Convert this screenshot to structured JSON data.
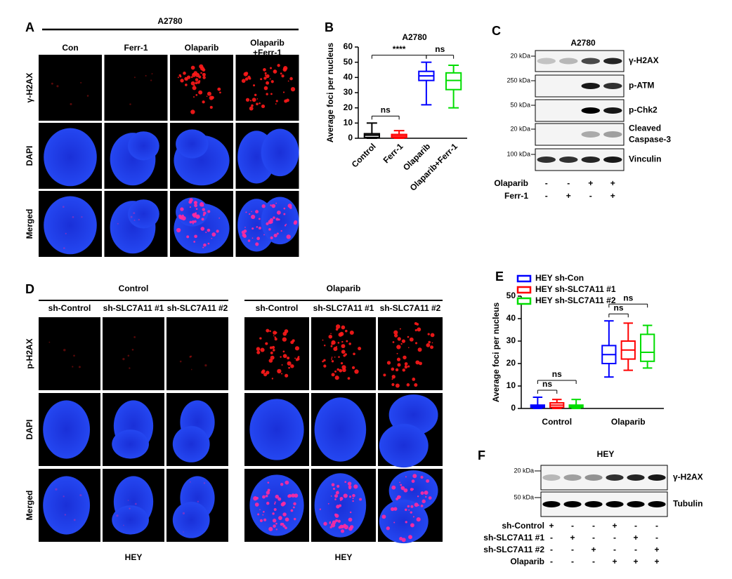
{
  "panel_a": {
    "letter": "A",
    "cell_line": "A2780",
    "columns": [
      "Con",
      "Ferr-1",
      "Olaparib",
      [
        "Olaparib",
        "+Ferr-1"
      ]
    ],
    "rows": [
      "γ-H2AX",
      "DAPI",
      "Merged"
    ]
  },
  "chart_data": [
    {
      "type": "box",
      "letter": "B",
      "title": "A2780",
      "ylabel": "Average foci per nucleus",
      "categories": [
        "Control",
        "Ferr-1",
        "Olaparib",
        "Olaparib+Ferr-1"
      ],
      "boxes": [
        {
          "color": "#000000",
          "min": 0,
          "q1": 0.5,
          "median": 2,
          "q3": 3,
          "max": 10
        },
        {
          "color": "#ff0000",
          "min": 0,
          "q1": 0.5,
          "median": 1.5,
          "q3": 2.5,
          "max": 5
        },
        {
          "color": "#0000ff",
          "min": 22,
          "q1": 38,
          "median": 41,
          "q3": 44,
          "max": 50
        },
        {
          "color": "#00dd00",
          "min": 20,
          "q1": 32,
          "median": 38,
          "q3": 43,
          "max": 48
        }
      ],
      "ylim": [
        0,
        60
      ],
      "yticks": [
        0,
        10,
        20,
        30,
        40,
        50,
        60
      ],
      "annotations": [
        {
          "text": "****",
          "pair": [
            0,
            2
          ]
        },
        {
          "text": "ns",
          "pair": [
            0,
            1
          ]
        },
        {
          "text": "ns",
          "pair": [
            2,
            3
          ]
        }
      ]
    },
    {
      "type": "box",
      "letter": "E",
      "ylabel": "Average foci per nucleus",
      "categories": [
        "Control",
        "Olaparib"
      ],
      "series": [
        {
          "name": "HEY sh-Con",
          "color": "#0000ff",
          "boxes": [
            {
              "min": 0,
              "q1": 0.5,
              "median": 1,
              "q3": 1.5,
              "max": 5
            },
            {
              "min": 14,
              "q1": 20,
              "median": 24,
              "q3": 28,
              "max": 39
            }
          ]
        },
        {
          "name": "HEY sh-SLC7A11 #1",
          "color": "#ff0000",
          "boxes": [
            {
              "min": 0,
              "q1": 0.5,
              "median": 1.5,
              "q3": 2.5,
              "max": 4
            },
            {
              "min": 17,
              "q1": 22,
              "median": 26,
              "q3": 30,
              "max": 38
            }
          ]
        },
        {
          "name": "HEY sh-SLC7A11 #2",
          "color": "#00dd00",
          "boxes": [
            {
              "min": 0,
              "q1": 0.5,
              "median": 1,
              "q3": 1.5,
              "max": 4
            },
            {
              "min": 18,
              "q1": 21,
              "median": 25,
              "q3": 33,
              "max": 37
            }
          ]
        }
      ],
      "ylim": [
        0,
        50
      ],
      "yticks": [
        0,
        10,
        20,
        30,
        40,
        50
      ],
      "annotations": [
        {
          "text": "ns",
          "category": 0,
          "pair": [
            0,
            1
          ]
        },
        {
          "text": "ns",
          "category": 0,
          "pair": [
            0,
            2
          ]
        },
        {
          "text": "ns",
          "category": 1,
          "pair": [
            0,
            1
          ]
        },
        {
          "text": "ns",
          "category": 1,
          "pair": [
            0,
            2
          ]
        }
      ]
    }
  ],
  "panel_c": {
    "letter": "C",
    "title": "A2780",
    "bands": [
      {
        "marker": "20 kDa",
        "label": "γ-H2AX"
      },
      {
        "marker": "250 kDa",
        "label": "p-ATM"
      },
      {
        "marker": "50 kDa",
        "label": "p-Chk2"
      },
      {
        "marker": "20 kDa",
        "label": [
          "Cleaved",
          "Caspase-3"
        ]
      },
      {
        "marker": "100 kDa",
        "label": "Vinculin"
      }
    ],
    "treatments": [
      {
        "name": "Olaparib",
        "signs": [
          "-",
          "-",
          "+",
          "+"
        ]
      },
      {
        "name": "Ferr-1",
        "signs": [
          "-",
          "+",
          "-",
          "+"
        ]
      }
    ]
  },
  "panel_d": {
    "letter": "D",
    "rows": [
      "p-H2AX",
      "DAPI",
      "Merged"
    ],
    "groups": [
      {
        "title": "Control",
        "columns": [
          "sh-Control",
          "sh-SLC7A11 #1",
          "sh-SLC7A11 #2"
        ],
        "footer": "HEY"
      },
      {
        "title": "Olaparib",
        "columns": [
          "sh-Control",
          "sh-SLC7A11 #1",
          "sh-SLC7A11 #2"
        ],
        "footer": "HEY"
      }
    ]
  },
  "panel_f": {
    "letter": "F",
    "title": "HEY",
    "bands": [
      {
        "marker": "20 kDa",
        "label": "γ-H2AX"
      },
      {
        "marker": "50 kDa",
        "label": "Tubulin"
      }
    ],
    "treatments": [
      {
        "name": "sh-Control",
        "signs": [
          "+",
          "-",
          "-",
          "+",
          "-",
          "-"
        ]
      },
      {
        "name": "sh-SLC7A11 #1",
        "signs": [
          "-",
          "+",
          "-",
          "-",
          "+",
          "-"
        ]
      },
      {
        "name": "sh-SLC7A11 #2",
        "signs": [
          "-",
          "-",
          "+",
          "-",
          "-",
          "+"
        ]
      },
      {
        "name": "Olaparib",
        "signs": [
          "-",
          "-",
          "-",
          "+",
          "+",
          "+"
        ]
      }
    ]
  }
}
